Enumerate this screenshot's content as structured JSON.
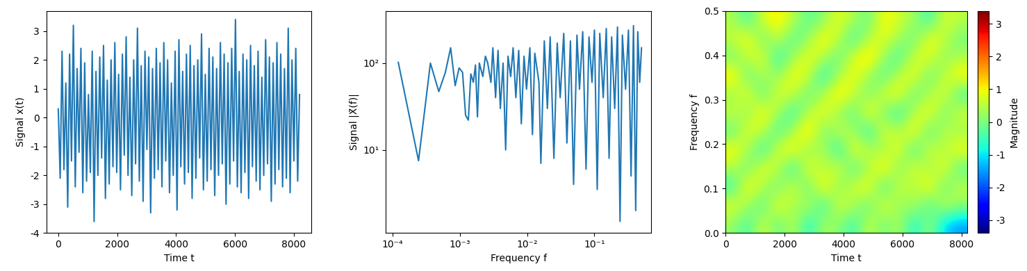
{
  "chart_data": [
    {
      "type": "line",
      "xlabel": "Time t",
      "ylabel": "Signal x(t)",
      "color": "#1f77b4",
      "x": [
        0,
        64,
        128,
        192,
        256,
        320,
        384,
        448,
        512,
        576,
        640,
        704,
        768,
        832,
        896,
        960,
        1024,
        1088,
        1152,
        1216,
        1280,
        1344,
        1408,
        1472,
        1536,
        1600,
        1664,
        1728,
        1792,
        1856,
        1920,
        1984,
        2048,
        2112,
        2176,
        2240,
        2304,
        2368,
        2432,
        2496,
        2560,
        2624,
        2688,
        2752,
        2816,
        2880,
        2944,
        3008,
        3072,
        3136,
        3200,
        3264,
        3328,
        3392,
        3456,
        3520,
        3584,
        3648,
        3712,
        3776,
        3840,
        3904,
        3968,
        4032,
        4096,
        4160,
        4224,
        4288,
        4352,
        4416,
        4480,
        4544,
        4608,
        4672,
        4736,
        4800,
        4864,
        4928,
        4992,
        5056,
        5120,
        5184,
        5248,
        5312,
        5376,
        5440,
        5504,
        5568,
        5632,
        5696,
        5760,
        5824,
        5888,
        5952,
        6016,
        6080,
        6144,
        6208,
        6272,
        6336,
        6400,
        6464,
        6528,
        6592,
        6656,
        6720,
        6784,
        6848,
        6912,
        6976,
        7040,
        7104,
        7168,
        7232,
        7296,
        7360,
        7424,
        7488,
        7552,
        7616,
        7680,
        7744,
        7808,
        7872,
        7936,
        8000,
        8064,
        8128,
        8192
      ],
      "values": [
        0.3,
        -2.1,
        2.3,
        -1.8,
        1.2,
        -3.1,
        2.2,
        -1.5,
        3.2,
        -2.4,
        1.7,
        -1.2,
        2.4,
        -2.6,
        1.9,
        -2.2,
        0.8,
        -1.9,
        2.3,
        -3.6,
        1.6,
        -2.0,
        2.1,
        -1.4,
        2.5,
        -2.8,
        1.3,
        -2.3,
        2.0,
        -1.7,
        2.6,
        -1.9,
        1.5,
        -2.5,
        2.2,
        -1.3,
        2.8,
        -2.0,
        1.4,
        -2.7,
        2.0,
        -1.6,
        3.1,
        -2.2,
        1.8,
        -2.9,
        2.3,
        -1.1,
        2.1,
        -3.3,
        1.7,
        -2.1,
        2.4,
        -1.8,
        1.9,
        -2.4,
        2.6,
        -1.5,
        2.0,
        -2.6,
        1.2,
        -2.0,
        2.3,
        -3.2,
        2.7,
        -1.7,
        1.6,
        -2.3,
        2.2,
        -1.9,
        2.5,
        -2.8,
        1.8,
        -2.1,
        2.0,
        -1.4,
        2.9,
        -2.5,
        1.5,
        -2.2,
        2.4,
        -1.8,
        2.1,
        -2.7,
        1.7,
        -2.0,
        2.6,
        -1.6,
        2.2,
        -3.0,
        1.9,
        -2.3,
        2.4,
        -1.5,
        3.4,
        -2.4,
        1.6,
        -2.6,
        2.2,
        -1.9,
        2.0,
        -2.8,
        2.5,
        -1.7,
        1.8,
        -2.2,
        2.3,
        -2.5,
        1.4,
        -2.0,
        2.7,
        -1.6,
        2.1,
        -2.9,
        1.9,
        -2.3,
        2.6,
        -1.8,
        2.2,
        -2.4,
        1.7,
        -2.1,
        3.1,
        -2.6,
        2.0,
        -1.5,
        2.4,
        -2.2,
        0.8
      ],
      "xlim": [
        -410,
        8602
      ],
      "ylim": [
        -4,
        3.7
      ],
      "xticks": [
        0,
        2000,
        4000,
        6000,
        8000
      ],
      "yticks": [
        -4,
        -3,
        -2,
        -1,
        0,
        1,
        2,
        3
      ]
    },
    {
      "type": "line",
      "log": true,
      "xlabel": "Frequency f",
      "ylabel": "Signal |X̃(f)|",
      "color": "#1f77b4",
      "x": [
        0.000122,
        0.000244,
        0.000366,
        0.000488,
        0.00061,
        0.000732,
        0.000854,
        0.000977,
        0.0011,
        0.00122,
        0.00134,
        0.00146,
        0.00159,
        0.00171,
        0.00183,
        0.00195,
        0.0022,
        0.0024,
        0.0026,
        0.0029,
        0.0031,
        0.0034,
        0.0037,
        0.004,
        0.0044,
        0.0048,
        0.0052,
        0.0057,
        0.0062,
        0.0068,
        0.0075,
        0.0082,
        0.009,
        0.0098,
        0.011,
        0.012,
        0.013,
        0.015,
        0.016,
        0.018,
        0.02,
        0.022,
        0.025,
        0.028,
        0.031,
        0.035,
        0.039,
        0.044,
        0.049,
        0.055,
        0.06,
        0.067,
        0.075,
        0.083,
        0.092,
        0.1,
        0.11,
        0.12,
        0.135,
        0.15,
        0.165,
        0.18,
        0.2,
        0.22,
        0.24,
        0.26,
        0.29,
        0.32,
        0.35,
        0.38,
        0.41,
        0.44,
        0.47,
        0.5
      ],
      "values": [
        102,
        7.5,
        100,
        47,
        78,
        150,
        55,
        88,
        78,
        25,
        22,
        75,
        60,
        95,
        24,
        100,
        70,
        120,
        100,
        60,
        150,
        40,
        140,
        30,
        100,
        10,
        120,
        70,
        150,
        40,
        140,
        20,
        120,
        50,
        150,
        15,
        130,
        60,
        7,
        180,
        30,
        200,
        8,
        170,
        40,
        220,
        12,
        180,
        4,
        210,
        50,
        230,
        6,
        200,
        60,
        240,
        3.5,
        220,
        40,
        250,
        8,
        200,
        30,
        260,
        1.5,
        210,
        50,
        240,
        5,
        270,
        2,
        230,
        60,
        150
      ],
      "xlim": [
        8e-05,
        0.7
      ],
      "ylim": [
        1.1,
        400
      ],
      "xticks": [
        {
          "value": 0.0001,
          "label": "10⁻⁴"
        },
        {
          "value": 0.001,
          "label": "10⁻³"
        },
        {
          "value": 0.01,
          "label": "10⁻²"
        },
        {
          "value": 0.1,
          "label": "10⁻¹"
        }
      ],
      "yticks": [
        {
          "value": 10,
          "label": "10¹"
        },
        {
          "value": 100,
          "label": "10²"
        }
      ]
    },
    {
      "type": "heatmap",
      "xlabel": "Time t",
      "ylabel": "Frequency f",
      "colorbar_label": "Magnitude",
      "xlim": [
        0,
        8192
      ],
      "ylim": [
        0,
        0.5
      ],
      "xticks": [
        0,
        2000,
        4000,
        6000,
        8000
      ],
      "yticks": [
        {
          "value": 0.0,
          "label": "0.0"
        },
        {
          "value": 0.1,
          "label": "0.1"
        },
        {
          "value": 0.2,
          "label": "0.2"
        },
        {
          "value": 0.3,
          "label": "0.3"
        },
        {
          "value": 0.4,
          "label": "0.4"
        },
        {
          "value": 0.5,
          "label": "0.5"
        }
      ],
      "color_range": [
        -3.4,
        3.4
      ],
      "color_ticks": [
        -3,
        -2,
        -1,
        0,
        1,
        2,
        3
      ],
      "cells": [
        [
          0.2,
          -0.5,
          0.8,
          -0.3,
          0.6,
          -0.8,
          0.4,
          0.1,
          -0.6,
          0.7,
          -0.2,
          0.5,
          -0.9,
          0.3,
          -1.2,
          -1.5
        ],
        [
          0.9,
          0.3,
          -0.4,
          1.1,
          0.2,
          0.6,
          -0.7,
          0.8,
          0.4,
          -0.3,
          1.0,
          0.1,
          0.5,
          -0.5,
          0.7,
          0.2
        ],
        [
          -0.6,
          1.2,
          0.4,
          -0.2,
          0.9,
          -0.4,
          1.3,
          0.0,
          0.7,
          1.1,
          -0.6,
          0.8,
          0.3,
          1.2,
          -0.3,
          0.6
        ],
        [
          0.5,
          -0.2,
          1.0,
          0.6,
          -0.8,
          1.1,
          0.3,
          0.9,
          -0.5,
          0.4,
          1.3,
          -0.1,
          0.9,
          0.2,
          1.0,
          -0.4
        ],
        [
          1.1,
          0.4,
          -0.7,
          0.8,
          1.2,
          0.0,
          0.6,
          -0.9,
          1.1,
          0.5,
          0.2,
          1.0,
          -0.6,
          0.8,
          0.3,
          1.1
        ],
        [
          -0.3,
          0.9,
          0.6,
          -0.5,
          0.4,
          1.4,
          -0.2,
          0.7,
          0.3,
          -0.8,
          0.9,
          0.4,
          1.2,
          -0.4,
          0.6,
          0.2
        ],
        [
          0.7,
          0.1,
          1.2,
          0.3,
          -0.6,
          0.5,
          1.0,
          0.2,
          -0.3,
          1.2,
          0.0,
          -0.7,
          0.5,
          1.1,
          -0.2,
          0.8
        ],
        [
          0.2,
          1.0,
          -0.4,
          0.9,
          0.6,
          -0.2,
          0.4,
          1.3,
          0.6,
          -0.1,
          0.8,
          1.1,
          -0.3,
          0.4,
          0.9,
          -0.5
        ],
        [
          1.3,
          -0.3,
          0.5,
          0.1,
          1.1,
          0.7,
          -0.8,
          0.4,
          1.0,
          0.3,
          -0.4,
          0.6,
          1.0,
          -0.2,
          0.5,
          1.2
        ],
        [
          -0.1,
          0.6,
          0.9,
          -0.7,
          0.3,
          1.0,
          0.5,
          -0.3,
          0.8,
          1.4,
          0.2,
          -0.5,
          0.7,
          0.9,
          0.1,
          0.4
        ],
        [
          0.6,
          1.1,
          -0.2,
          0.7,
          -0.4,
          0.2,
          1.2,
          0.6,
          -0.6,
          0.5,
          0.9,
          0.3,
          -0.2,
          1.0,
          0.6,
          -0.1
        ],
        [
          0.4,
          -0.5,
          0.8,
          1.2,
          0.5,
          -0.3,
          0.1,
          0.9,
          0.4,
          -0.2,
          1.1,
          0.7,
          0.3,
          -0.6,
          0.8,
          0.5
        ]
      ]
    }
  ]
}
